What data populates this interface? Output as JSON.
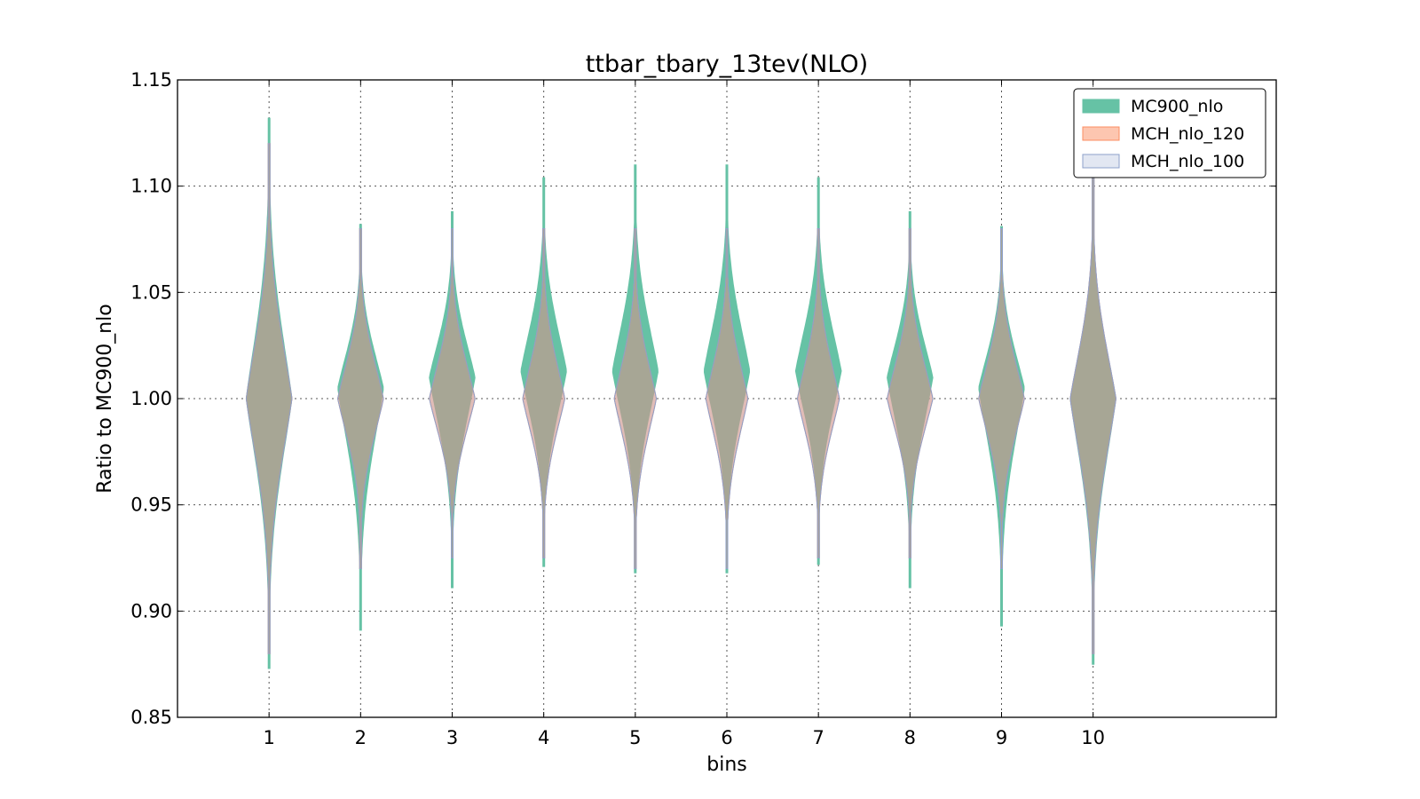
{
  "chart_data": {
    "type": "violin",
    "title": "ttbar_tbary_13tev(NLO)",
    "xlabel": "bins",
    "ylabel": "Ratio to MC900_nlo",
    "categories": [
      "1",
      "2",
      "3",
      "4",
      "5",
      "6",
      "7",
      "8",
      "9",
      "10"
    ],
    "x": [
      1,
      2,
      3,
      4,
      5,
      6,
      7,
      8,
      9,
      10
    ],
    "xlim": [
      0,
      12
    ],
    "ylim": [
      0.85,
      1.15
    ],
    "yticks": [
      "0.85",
      "0.90",
      "0.95",
      "1.00",
      "1.05",
      "1.10",
      "1.15"
    ],
    "grid": true,
    "legend_position": "top-right",
    "series": [
      {
        "name": "MC900_nlo",
        "color": "#66c2a5",
        "opacity": 1.0,
        "violins": [
          {
            "min": 0.873,
            "max": 1.132,
            "center": 1.0,
            "halfwidth": 0.25
          },
          {
            "min": 0.891,
            "max": 1.082,
            "center": 1.005,
            "halfwidth": 0.25
          },
          {
            "min": 0.911,
            "max": 1.088,
            "center": 1.01,
            "halfwidth": 0.25
          },
          {
            "min": 0.921,
            "max": 1.104,
            "center": 1.013,
            "halfwidth": 0.25
          },
          {
            "min": 0.918,
            "max": 1.11,
            "center": 1.013,
            "halfwidth": 0.25
          },
          {
            "min": 0.918,
            "max": 1.11,
            "center": 1.013,
            "halfwidth": 0.25
          },
          {
            "min": 0.922,
            "max": 1.104,
            "center": 1.013,
            "halfwidth": 0.25
          },
          {
            "min": 0.911,
            "max": 1.088,
            "center": 1.01,
            "halfwidth": 0.25
          },
          {
            "min": 0.893,
            "max": 1.081,
            "center": 1.005,
            "halfwidth": 0.25
          },
          {
            "min": 0.875,
            "max": 1.104,
            "center": 1.0,
            "halfwidth": 0.25
          }
        ]
      },
      {
        "name": "MCH_nlo_120",
        "color": "#fc8d62",
        "opacity": 0.5,
        "violins": [
          {
            "min": 0.88,
            "max": 1.12,
            "center": 1.0,
            "halfwidth": 0.25
          },
          {
            "min": 0.92,
            "max": 1.08,
            "center": 1.0,
            "halfwidth": 0.25
          },
          {
            "min": 0.925,
            "max": 1.08,
            "center": 1.0,
            "halfwidth": 0.25
          },
          {
            "min": 0.925,
            "max": 1.08,
            "center": 1.0,
            "halfwidth": 0.23
          },
          {
            "min": 0.92,
            "max": 1.08,
            "center": 1.0,
            "halfwidth": 0.23
          },
          {
            "min": 0.92,
            "max": 1.08,
            "center": 1.0,
            "halfwidth": 0.23
          },
          {
            "min": 0.925,
            "max": 1.08,
            "center": 1.0,
            "halfwidth": 0.23
          },
          {
            "min": 0.925,
            "max": 1.08,
            "center": 1.0,
            "halfwidth": 0.25
          },
          {
            "min": 0.92,
            "max": 1.08,
            "center": 1.0,
            "halfwidth": 0.25
          },
          {
            "min": 0.88,
            "max": 1.105,
            "center": 1.0,
            "halfwidth": 0.25
          }
        ]
      },
      {
        "name": "MCH_nlo_100",
        "color": "#8da0cb",
        "opacity": 0.25,
        "violins": [
          {
            "min": 0.88,
            "max": 1.12,
            "center": 1.0,
            "halfwidth": 0.25
          },
          {
            "min": 0.92,
            "max": 1.08,
            "center": 1.0,
            "halfwidth": 0.25
          },
          {
            "min": 0.925,
            "max": 1.08,
            "center": 1.0,
            "halfwidth": 0.25
          },
          {
            "min": 0.925,
            "max": 1.08,
            "center": 1.0,
            "halfwidth": 0.23
          },
          {
            "min": 0.92,
            "max": 1.08,
            "center": 1.0,
            "halfwidth": 0.23
          },
          {
            "min": 0.92,
            "max": 1.08,
            "center": 1.0,
            "halfwidth": 0.23
          },
          {
            "min": 0.925,
            "max": 1.08,
            "center": 1.0,
            "halfwidth": 0.23
          },
          {
            "min": 0.925,
            "max": 1.08,
            "center": 1.0,
            "halfwidth": 0.25
          },
          {
            "min": 0.92,
            "max": 1.08,
            "center": 1.0,
            "halfwidth": 0.25
          },
          {
            "min": 0.88,
            "max": 1.105,
            "center": 1.0,
            "halfwidth": 0.25
          }
        ]
      }
    ]
  }
}
